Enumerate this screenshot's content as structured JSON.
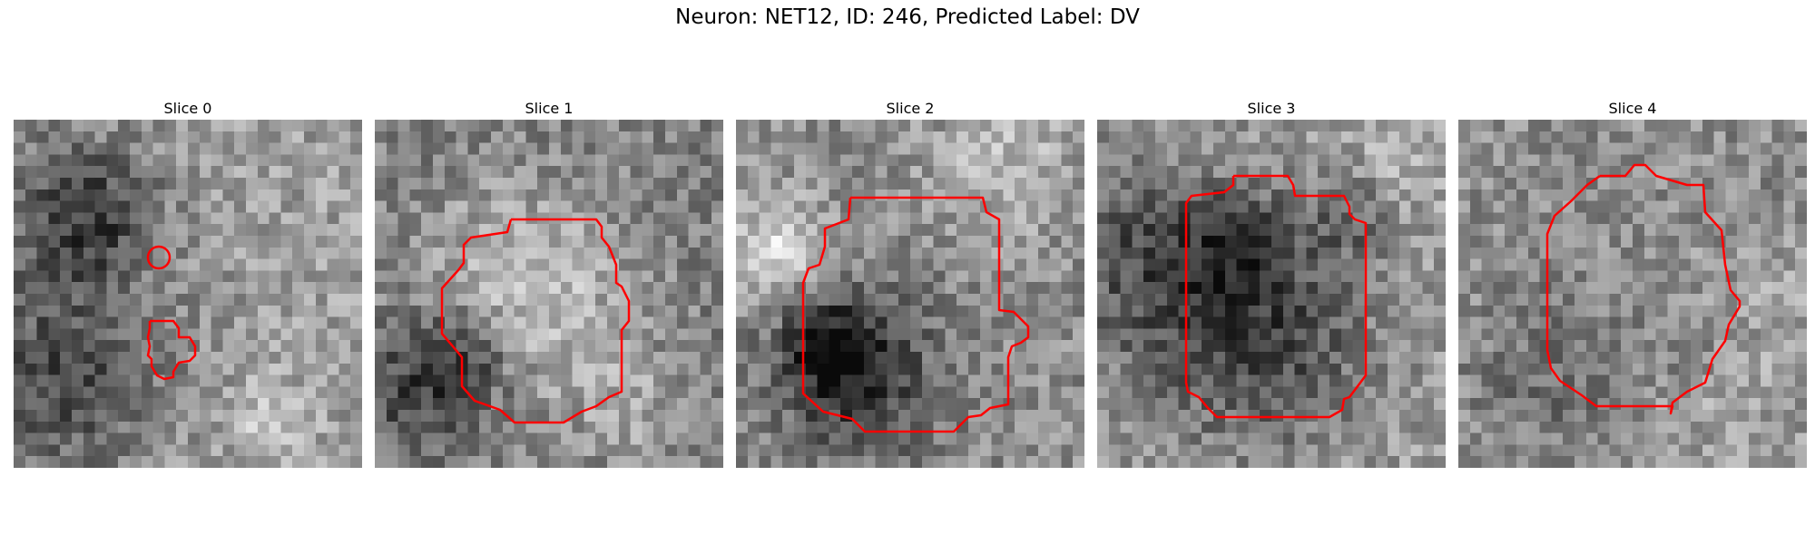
{
  "figure": {
    "title": "Neuron: NET12, ID: 246, Predicted Label: DV"
  },
  "panels": [
    {
      "title": "Slice 0"
    },
    {
      "title": "Slice 1"
    },
    {
      "title": "Slice 2"
    },
    {
      "title": "Slice 3"
    },
    {
      "title": "Slice 4"
    }
  ],
  "colors": {
    "contour": "#ff0000",
    "background": "#ffffff"
  },
  "image_style": "grayscale pixelated microscopy patch with red ROI contour"
}
